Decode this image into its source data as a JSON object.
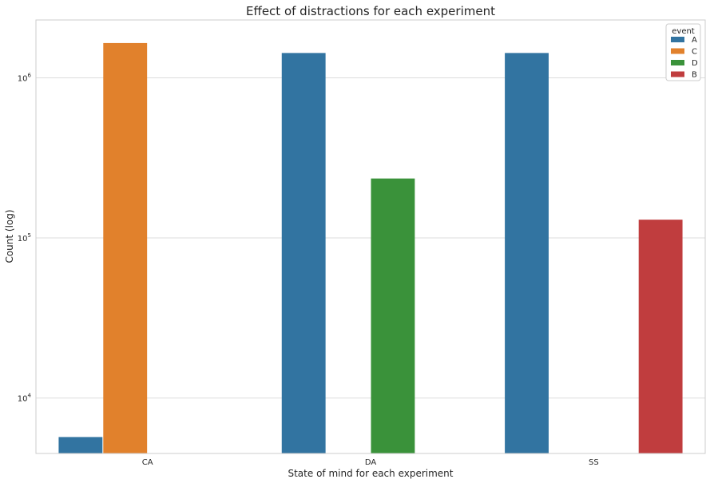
{
  "chart_data": {
    "type": "bar",
    "title": "Effect of distractions for each experiment",
    "xlabel": "State of mind for each experiment",
    "ylabel": "Count (log)",
    "yscale": "log",
    "ylim": [
      4500,
      2300000
    ],
    "yticks": [
      {
        "value": 10000,
        "base": "10",
        "exp": "4"
      },
      {
        "value": 100000,
        "base": "10",
        "exp": "5"
      },
      {
        "value": 1000000,
        "base": "10",
        "exp": "6"
      }
    ],
    "categories": [
      "CA",
      "DA",
      "SS"
    ],
    "grid": true,
    "legend": {
      "title": "event",
      "placement": "top-right"
    },
    "series": [
      {
        "name": "A",
        "color": "#3274a1",
        "values": [
          5700,
          1430000,
          1430000
        ]
      },
      {
        "name": "C",
        "color": "#e1812c",
        "values": [
          1650000,
          null,
          null
        ]
      },
      {
        "name": "D",
        "color": "#3a923a",
        "values": [
          null,
          235000,
          null
        ]
      },
      {
        "name": "B",
        "color": "#c03d3e",
        "values": [
          null,
          null,
          130000
        ]
      }
    ]
  }
}
